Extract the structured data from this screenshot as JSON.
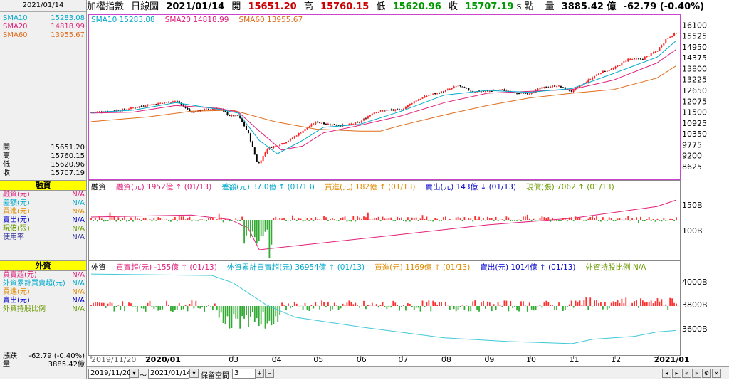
{
  "sidebar": {
    "date": "2021/01/14",
    "ma": [
      {
        "label": "SMA10",
        "value": "15283.08",
        "color": "#00aacc"
      },
      {
        "label": "SMA20",
        "value": "14818.99",
        "color": "#e0207a"
      },
      {
        "label": "SMA60",
        "value": "13955.67",
        "color": "#e06b1a"
      }
    ],
    "ohlc": [
      {
        "label": "開",
        "value": "15651.20"
      },
      {
        "label": "高",
        "value": "15760.15"
      },
      {
        "label": "低",
        "value": "15620.96"
      },
      {
        "label": "收",
        "value": "15707.19"
      }
    ],
    "margin_head": "融資",
    "margin_rows": [
      {
        "label": "融資(元)",
        "value": "N/A",
        "color": "#e0207a"
      },
      {
        "label": "差額(元)",
        "value": "N/A",
        "color": "#00aacc"
      },
      {
        "label": "買進(元)",
        "value": "N/A",
        "color": "#e08a00"
      },
      {
        "label": "賣出(元)",
        "value": "N/A",
        "color": "#0000cc"
      },
      {
        "label": "現償(張)",
        "value": "N/A",
        "color": "#6a9a00"
      },
      {
        "label": "使用率",
        "value": "N/A",
        "color": "#333399"
      }
    ],
    "foreign_head": "外資",
    "foreign_rows": [
      {
        "label": "買賣超(元)",
        "value": "N/A",
        "color": "#e0207a"
      },
      {
        "label": "外資累計買賣超(元)",
        "value": "N/A",
        "color": "#00aacc"
      },
      {
        "label": "買進(元)",
        "value": "N/A",
        "color": "#e08a00"
      },
      {
        "label": "賣出(元)",
        "value": "N/A",
        "color": "#0000cc"
      },
      {
        "label": "外資持股比例",
        "value": "N/A",
        "color": "#6a9a00"
      }
    ],
    "change_label": "漲跌",
    "change_value": "-62.79 (-0.40%)",
    "volume_label": "量",
    "volume_value": "3885.42億"
  },
  "topbar": {
    "name": "加權指數",
    "period": "日線圖",
    "date": "2021/01/14",
    "open_label": "開",
    "open": "15651.20",
    "high_label": "高",
    "high": "15760.15",
    "low_label": "低",
    "low": "15620.96",
    "close_label": "收",
    "close": "15707.19",
    "unit": "s 點",
    "vol_label": "量",
    "vol": "3885.42 億",
    "change": "-62.79 (-0.40%)"
  },
  "price_legend": [
    {
      "text": "SMA10 15283.08",
      "color": "#00aacc"
    },
    {
      "text": "SMA20 14818.99",
      "color": "#e0207a"
    },
    {
      "text": "SMA60 13955.67",
      "color": "#e06b1a"
    }
  ],
  "margin_legend": [
    {
      "text": "融資",
      "color": "#000"
    },
    {
      "text": "融資(元) 1952億 ↑ (01/13)",
      "color": "#e0207a"
    },
    {
      "text": "差額(元) 37.0億 ↑ (01/13)",
      "color": "#00aacc"
    },
    {
      "text": "買進(元) 182億 ↑ (01/13)",
      "color": "#e08a00"
    },
    {
      "text": "賣出(元) 143億 ↓ (01/13)",
      "color": "#0000cc"
    },
    {
      "text": "現償(張) 7062 ↑ (01/13)",
      "color": "#6a9a00"
    }
  ],
  "foreign_legend": [
    {
      "text": "外資",
      "color": "#000"
    },
    {
      "text": "買賣超(元) -155億 ↑ (01/13)",
      "color": "#e0207a"
    },
    {
      "text": "外資累計買賣超(元) 36954億 ↑ (01/13)",
      "color": "#00aacc"
    },
    {
      "text": "買進(元) 1169億 ↑ (01/13)",
      "color": "#e08a00"
    },
    {
      "text": "賣出(元) 1014億 ↑ (01/13)",
      "color": "#0000cc"
    },
    {
      "text": "外資持股比例 N/A",
      "color": "#6a9a00"
    }
  ],
  "bottombar": {
    "from": "2019/11/20",
    "to": "2021/01/14",
    "sep": "～",
    "keep_label": "保留空間",
    "keep_value": "3"
  },
  "chart_data": [
    {
      "type": "candlestick",
      "yticks": [
        16100,
        15525,
        14950,
        14375,
        13800,
        13225,
        12650,
        12075,
        11500,
        10925,
        10350,
        9775,
        9200,
        8625
      ],
      "ylim": [
        8400,
        16300
      ],
      "xticks": [
        "2019/11/20",
        "2020/01",
        "03",
        "04",
        "05",
        "06",
        "07",
        "08",
        "09",
        "10",
        "11",
        "12",
        "2021/01"
      ],
      "x_key_dates": [
        "2019/11/20",
        "2020/01/01",
        "2020/03/01",
        "2020/04/01",
        "2020/05/01",
        "2020/06/01",
        "2020/07/01",
        "2020/08/01",
        "2020/09/01",
        "2020/10/01",
        "2020/11/01",
        "2020/12/01",
        "2021/01/01",
        "2021/01/14"
      ],
      "close_path": [
        [
          "2019/11/20",
          11500
        ],
        [
          "2019/12/01",
          11530
        ],
        [
          "2019/12/15",
          11650
        ],
        [
          "2019/12/31",
          11900
        ],
        [
          "2020/01/10",
          11980
        ],
        [
          "2020/01/20",
          12100
        ],
        [
          "2020/01/31",
          11500
        ],
        [
          "2020/02/10",
          11650
        ],
        [
          "2020/02/20",
          11700
        ],
        [
          "2020/02/28",
          11300
        ],
        [
          "2020/03/05",
          11300
        ],
        [
          "2020/03/12",
          10400
        ],
        [
          "2020/03/19",
          8700
        ],
        [
          "2020/03/26",
          9600
        ],
        [
          "2020/03/31",
          9700
        ],
        [
          "2020/04/10",
          10000
        ],
        [
          "2020/04/20",
          10500
        ],
        [
          "2020/04/30",
          10990
        ],
        [
          "2020/05/10",
          10850
        ],
        [
          "2020/05/20",
          10800
        ],
        [
          "2020/05/31",
          10950
        ],
        [
          "2020/06/10",
          11500
        ],
        [
          "2020/06/20",
          11600
        ],
        [
          "2020/06/30",
          11620
        ],
        [
          "2020/07/10",
          12100
        ],
        [
          "2020/07/20",
          12400
        ],
        [
          "2020/07/31",
          12600
        ],
        [
          "2020/08/10",
          12900
        ],
        [
          "2020/08/20",
          12600
        ],
        [
          "2020/08/31",
          12600
        ],
        [
          "2020/09/10",
          12700
        ],
        [
          "2020/09/20",
          12500
        ],
        [
          "2020/09/30",
          12500
        ],
        [
          "2020/10/10",
          12800
        ],
        [
          "2020/10/20",
          12900
        ],
        [
          "2020/10/31",
          12600
        ],
        [
          "2020/11/10",
          13100
        ],
        [
          "2020/11/20",
          13600
        ],
        [
          "2020/11/30",
          13800
        ],
        [
          "2020/12/10",
          14300
        ],
        [
          "2020/12/20",
          14300
        ],
        [
          "2020/12/31",
          14730
        ],
        [
          "2021/01/07",
          15400
        ],
        [
          "2021/01/14",
          15707
        ]
      ],
      "sma20_path": [
        [
          "2019/11/20",
          11450
        ],
        [
          "2019/12/20",
          11500
        ],
        [
          "2020/01/20",
          11850
        ],
        [
          "2020/02/20",
          11700
        ],
        [
          "2020/03/05",
          11500
        ],
        [
          "2020/03/20",
          10500
        ],
        [
          "2020/04/05",
          9500
        ],
        [
          "2020/04/20",
          9700
        ],
        [
          "2020/05/05",
          10400
        ],
        [
          "2020/05/31",
          10800
        ],
        [
          "2020/06/30",
          11300
        ],
        [
          "2020/07/31",
          12000
        ],
        [
          "2020/08/31",
          12500
        ],
        [
          "2020/09/30",
          12600
        ],
        [
          "2020/10/31",
          12700
        ],
        [
          "2020/11/30",
          13200
        ],
        [
          "2020/12/31",
          14100
        ],
        [
          "2021/01/14",
          14819
        ]
      ],
      "sma10_path": [
        [
          "2019/11/20",
          11480
        ],
        [
          "2019/12/20",
          11600
        ],
        [
          "2020/01/20",
          12000
        ],
        [
          "2020/02/20",
          11650
        ],
        [
          "2020/03/05",
          11450
        ],
        [
          "2020/03/20",
          10000
        ],
        [
          "2020/04/02",
          9300
        ],
        [
          "2020/04/20",
          10000
        ],
        [
          "2020/05/05",
          10700
        ],
        [
          "2020/05/31",
          10850
        ],
        [
          "2020/06/30",
          11550
        ],
        [
          "2020/07/31",
          12400
        ],
        [
          "2020/08/31",
          12650
        ],
        [
          "2020/09/30",
          12550
        ],
        [
          "2020/10/31",
          12750
        ],
        [
          "2020/11/30",
          13550
        ],
        [
          "2020/12/31",
          14400
        ],
        [
          "2021/01/14",
          15283
        ]
      ],
      "sma60_path": [
        [
          "2019/11/20",
          11000
        ],
        [
          "2019/12/31",
          11250
        ],
        [
          "2020/01/31",
          11550
        ],
        [
          "2020/03/01",
          11600
        ],
        [
          "2020/03/31",
          11000
        ],
        [
          "2020/04/30",
          10600
        ],
        [
          "2020/05/31",
          10500
        ],
        [
          "2020/06/15",
          10500
        ],
        [
          "2020/06/30",
          10800
        ],
        [
          "2020/07/31",
          11350
        ],
        [
          "2020/08/31",
          11850
        ],
        [
          "2020/09/30",
          12250
        ],
        [
          "2020/10/31",
          12500
        ],
        [
          "2020/11/30",
          12700
        ],
        [
          "2020/12/31",
          13300
        ],
        [
          "2021/01/14",
          13956
        ]
      ]
    },
    {
      "type": "bar+line",
      "yticks": [
        "150B",
        "100B"
      ],
      "series": [
        {
          "name": "融資(元)",
          "kind": "line",
          "path": [
            [
              "2019/11/20",
              0.62
            ],
            [
              "2020/01/31",
              0.65
            ],
            [
              "2020/02/28",
              0.58
            ],
            [
              "2020/03/12",
              0.45
            ],
            [
              "2020/03/20",
              0.12
            ],
            [
              "2020/04/15",
              0.18
            ],
            [
              "2020/06/15",
              0.32
            ],
            [
              "2020/08/31",
              0.5
            ],
            [
              "2020/10/31",
              0.6
            ],
            [
              "2020/12/31",
              0.78
            ],
            [
              "2021/01/14",
              0.88
            ]
          ]
        }
      ]
    },
    {
      "type": "bar+line",
      "yticks": [
        "4000B",
        "3800B",
        "3600B"
      ],
      "series": [
        {
          "name": "外資累計買賣超(元)",
          "kind": "line",
          "path": [
            [
              "2019/11/20",
              0.97
            ],
            [
              "2020/02/15",
              0.95
            ],
            [
              "2020/03/01",
              0.85
            ],
            [
              "2020/03/25",
              0.55
            ],
            [
              "2020/04/15",
              0.38
            ],
            [
              "2020/05/31",
              0.25
            ],
            [
              "2020/07/31",
              0.1
            ],
            [
              "2020/09/15",
              0.05
            ],
            [
              "2020/10/31",
              0.02
            ],
            [
              "2020/11/15",
              0.08
            ],
            [
              "2020/12/15",
              0.12
            ],
            [
              "2020/12/31",
              0.18
            ],
            [
              "2021/01/14",
              0.2
            ]
          ]
        }
      ]
    }
  ]
}
